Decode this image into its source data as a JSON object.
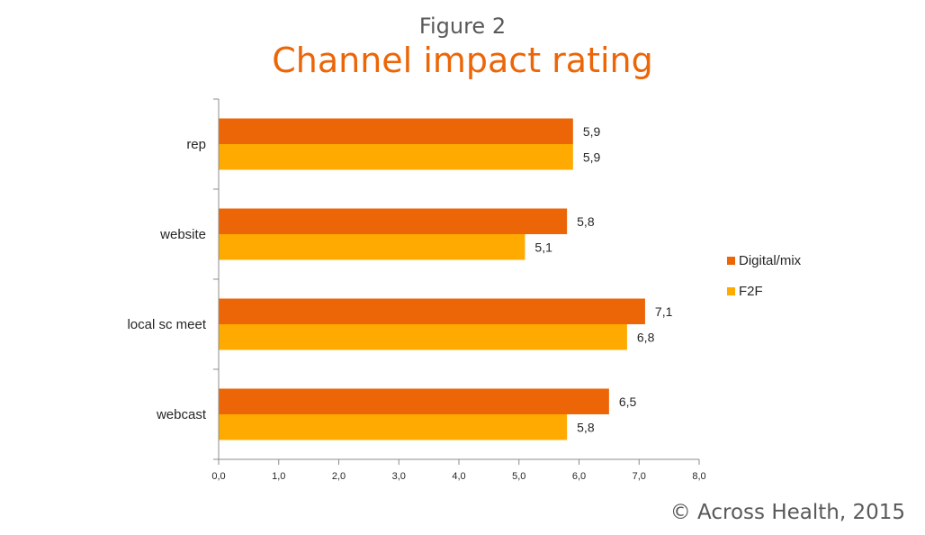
{
  "header": {
    "subtitle": "Figure 2",
    "title": "Channel impact rating"
  },
  "footer": {
    "copyright": "©  Across Health, 2015"
  },
  "chart_data": {
    "type": "bar",
    "orientation": "horizontal",
    "title": "Channel impact rating",
    "categories": [
      "rep",
      "website",
      "local sc meet",
      "webcast"
    ],
    "series": [
      {
        "name": "Digital/mix",
        "values": [
          5.9,
          5.8,
          7.1,
          6.5
        ],
        "color": "#ec6608"
      },
      {
        "name": "F2F",
        "values": [
          5.9,
          5.1,
          6.8,
          5.8
        ],
        "color": "#ffaa00"
      }
    ],
    "data_labels": [
      [
        "5,9",
        "5,8",
        "7,1",
        "6,5"
      ],
      [
        "5,9",
        "5,1",
        "6,8",
        "5,8"
      ]
    ],
    "xlim": [
      0,
      8
    ],
    "xticks": [
      "0,0",
      "1,0",
      "2,0",
      "3,0",
      "4,0",
      "5,0",
      "6,0",
      "7,0",
      "8,0"
    ],
    "grid": false,
    "legend_position": "right"
  }
}
